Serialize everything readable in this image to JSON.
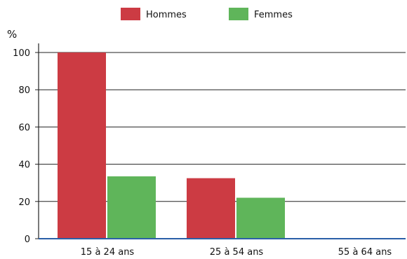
{
  "chart_data": {
    "type": "bar",
    "title": "",
    "xlabel": "",
    "ylabel": "%",
    "ylim": [
      0,
      100
    ],
    "yticks": [
      0,
      20,
      40,
      60,
      80,
      100
    ],
    "grid": true,
    "legend_position": "top-center",
    "categories": [
      "15 à 24 ans",
      "25 à 54 ans",
      "55 à 64 ans"
    ],
    "series": [
      {
        "name": "Hommes",
        "color": "#cc3b43",
        "values": [
          100,
          32.5,
          0
        ]
      },
      {
        "name": "Femmes",
        "color": "#5fb55a",
        "values": [
          33.5,
          22,
          0
        ]
      }
    ]
  }
}
